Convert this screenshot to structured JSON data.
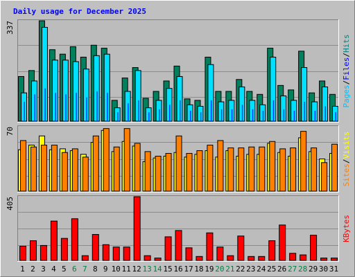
{
  "chart_data": {
    "type": "bar",
    "title": "Daily usage for December 2025",
    "categories": [
      "1",
      "2",
      "3",
      "4",
      "5",
      "6",
      "7",
      "8",
      "9",
      "10",
      "11",
      "12",
      "13",
      "14",
      "15",
      "16",
      "17",
      "18",
      "19",
      "20",
      "21",
      "22",
      "23",
      "24",
      "25",
      "26",
      "27",
      "28",
      "29",
      "30",
      "31"
    ],
    "weekend_categories": [
      "6",
      "7",
      "13",
      "14",
      "20",
      "21",
      "27",
      "28"
    ],
    "colors": {
      "background": "#c0c0c0",
      "panel_bg": "#bcbcbc",
      "frame_light": "#ffffff",
      "frame_dark": "#808080",
      "grid": "#8c8c8c",
      "title": "#0000ff",
      "weekday_label": "#000000",
      "weekend_label": "#008040",
      "hits": "#00805c",
      "files": "#00e0ff",
      "pages": "#0040ff",
      "visits": "#ffff00",
      "sites": "#ff8000",
      "kbytes": "#ff0000"
    },
    "panels": [
      {
        "id": "hits-files-pages",
        "ymax_label": "337",
        "ylim": [
          0,
          337
        ],
        "legend": [
          {
            "text": "Pages",
            "color": "#00c0ff"
          },
          {
            "text": "/",
            "color": "#000000"
          },
          {
            "text": "Files",
            "color": "#0000ff"
          },
          {
            "text": "/",
            "color": "#000000"
          },
          {
            "text": "Hits",
            "color": "#008080"
          }
        ],
        "series": [
          {
            "name": "Hits",
            "color": "#00805c",
            "values": [
              150,
              170,
              337,
              240,
              225,
              250,
              215,
              255,
              245,
              70,
              145,
              180,
              77,
              100,
              135,
              185,
              75,
              70,
              215,
              100,
              100,
              140,
              100,
              90,
              245,
              120,
              105,
              235,
              95,
              135,
              90
            ]
          },
          {
            "name": "Files",
            "color": "#00e0ff",
            "values": [
              95,
              135,
              315,
              205,
              205,
              200,
              175,
              220,
              225,
              45,
              100,
              170,
              45,
              70,
              110,
              150,
              55,
              50,
              190,
              65,
              70,
              115,
              70,
              55,
              215,
              85,
              70,
              180,
              65,
              115,
              50
            ]
          },
          {
            "name": "Pages",
            "color": "#0040ff",
            "values": [
              65,
              90,
              110,
              95,
              90,
              95,
              80,
              100,
              95,
              30,
              60,
              70,
              30,
              40,
              55,
              70,
              35,
              30,
              70,
              40,
              40,
              55,
              40,
              35,
              70,
              40,
              35,
              65,
              35,
              50,
              30
            ]
          }
        ]
      },
      {
        "id": "sites-visits",
        "ymax_label": "70",
        "ylim": [
          0,
          70
        ],
        "legend": [
          {
            "text": "Sites",
            "color": "#ff8000"
          },
          {
            "text": "/",
            "color": "#000000"
          },
          {
            "text": "Visits",
            "color": "#ffff00"
          }
        ],
        "series": [
          {
            "name": "Visits",
            "color": "#ffff00",
            "values": [
              45,
              50,
              60,
              45,
              46,
              44,
              40,
              53,
              66,
              43,
              54,
              49,
              32,
              36,
              38,
              42,
              37,
              40,
              44,
              37,
              44,
              38,
              40,
              40,
              52,
              42,
              38,
              58,
              43,
              35,
              41
            ]
          },
          {
            "name": "Sites",
            "color": "#ff8000",
            "values": [
              55,
              48,
              50,
              50,
              42,
              46,
              37,
              60,
              68,
              48,
              68,
              52,
              43,
              38,
              41,
              60,
              41,
              44,
              50,
              55,
              47,
              47,
              48,
              48,
              54,
              46,
              47,
              65,
              47,
              31,
              51
            ]
          }
        ]
      },
      {
        "id": "kbytes",
        "ymax_label": "405",
        "ylim": [
          0,
          405
        ],
        "legend": [
          {
            "text": "KBytes",
            "color": "#ff0000"
          }
        ],
        "series": [
          {
            "name": "KBytes",
            "color": "#ff0000",
            "values": [
              90,
              125,
              95,
              250,
              140,
              265,
              30,
              165,
              100,
              85,
              85,
              405,
              30,
              15,
              150,
              190,
              80,
              25,
              175,
              85,
              30,
              155,
              25,
              25,
              125,
              225,
              45,
              35,
              160,
              15,
              15
            ]
          }
        ]
      }
    ]
  }
}
